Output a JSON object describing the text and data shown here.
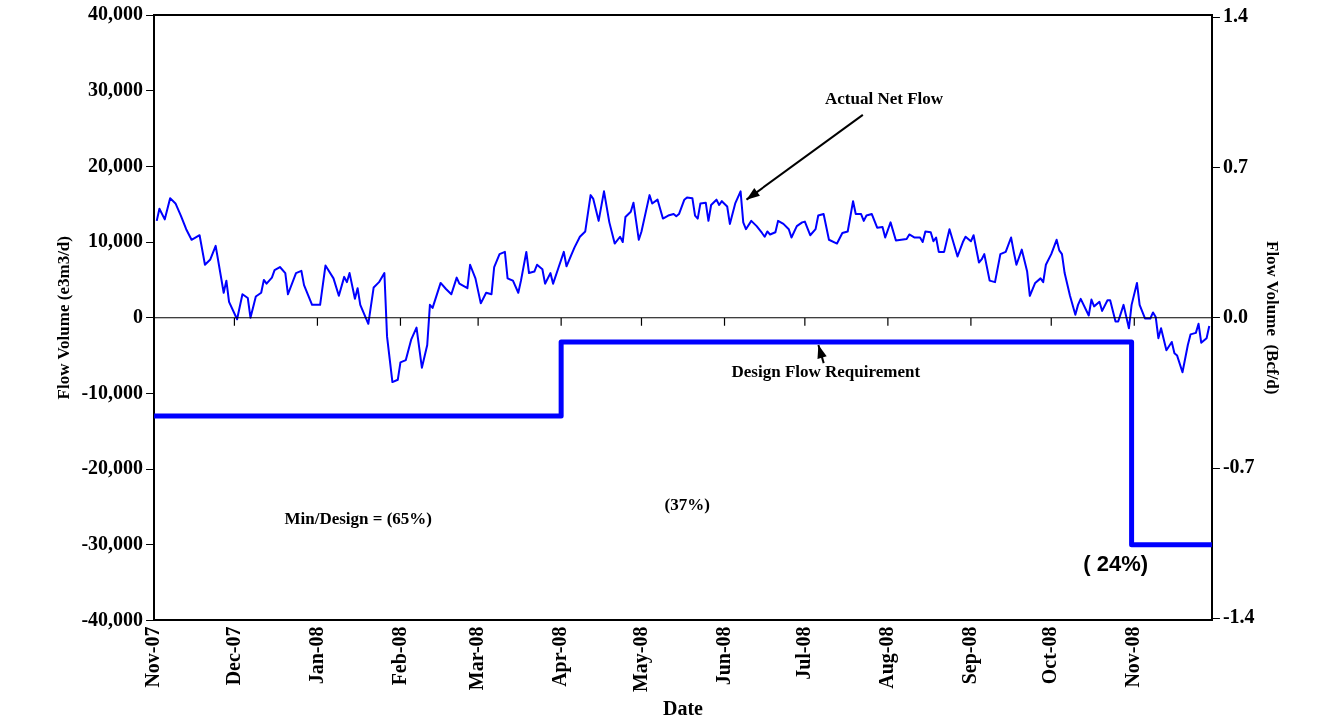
{
  "chart_data": {
    "type": "line",
    "xlabel": "Date",
    "ylabel": "Flow Volume (e3m3/d)",
    "y2label": "Flow Volume  (Bcf/d)",
    "xlim": [
      "2007-11-01",
      "2008-11-30"
    ],
    "xticks": [
      {
        "value": "2007-11-01",
        "label": "Nov-07"
      },
      {
        "value": "2007-12-01",
        "label": "Dec-07"
      },
      {
        "value": "2008-01-01",
        "label": "Jan-08"
      },
      {
        "value": "2008-02-01",
        "label": "Feb-08"
      },
      {
        "value": "2008-03-01",
        "label": "Mar-08"
      },
      {
        "value": "2008-04-01",
        "label": "Apr-08"
      },
      {
        "value": "2008-05-01",
        "label": "May-08"
      },
      {
        "value": "2008-06-01",
        "label": "Jun-08"
      },
      {
        "value": "2008-07-01",
        "label": "Jul-08"
      },
      {
        "value": "2008-08-01",
        "label": "Aug-08"
      },
      {
        "value": "2008-09-01",
        "label": "Sep-08"
      },
      {
        "value": "2008-10-01",
        "label": "Oct-08"
      },
      {
        "value": "2008-11-01",
        "label": "Nov-08"
      }
    ],
    "ylim": [
      -40000,
      40000
    ],
    "yticks": [
      {
        "value": -40000,
        "label": "-40,000"
      },
      {
        "value": -30000,
        "label": "-30,000"
      },
      {
        "value": -20000,
        "label": "-20,000"
      },
      {
        "value": -10000,
        "label": "-10,000"
      },
      0,
      {
        "value": 10000,
        "label": "10,000"
      },
      {
        "value": 20000,
        "label": "20,000"
      },
      {
        "value": 30000,
        "label": "30,000"
      },
      {
        "value": 40000,
        "label": "40,000"
      }
    ],
    "y2lim": [
      -1.41,
      1.41
    ],
    "y2ticks": [
      -1.4,
      -0.7,
      {
        "value": 0,
        "label": "0.0"
      },
      0.7,
      1.4
    ],
    "grid": false,
    "legend": false,
    "marker": "none",
    "ref_lines": [
      {
        "axis": "y",
        "value": 0,
        "color": "#000000"
      }
    ],
    "annotations": [
      "Min/Design = (65%)",
      "(37%)",
      "( 24%)"
    ],
    "series": [
      {
        "name": "Actual Net Flow",
        "color": "#0000ff",
        "x": [
          "2007-11-02",
          "2007-11-03",
          "2007-11-05",
          "2007-11-07",
          "2007-11-09",
          "2007-11-11",
          "2007-11-13",
          "2007-11-15",
          "2007-11-18",
          "2007-11-20",
          "2007-11-22",
          "2007-11-24",
          "2007-11-27",
          "2007-11-28",
          "2007-11-29",
          "2007-12-02",
          "2007-12-04",
          "2007-12-06",
          "2007-12-07",
          "2007-12-09",
          "2007-12-11",
          "2007-12-12",
          "2007-12-13",
          "2007-12-15",
          "2007-12-16",
          "2007-12-18",
          "2007-12-20",
          "2007-12-21",
          "2007-12-24",
          "2007-12-26",
          "2007-12-27",
          "2007-12-30",
          "2008-01-02",
          "2008-01-04",
          "2008-01-07",
          "2008-01-09",
          "2008-01-11",
          "2008-01-12",
          "2008-01-13",
          "2008-01-15",
          "2008-01-16",
          "2008-01-17",
          "2008-01-20",
          "2008-01-22",
          "2008-01-24",
          "2008-01-26",
          "2008-01-27",
          "2008-01-29",
          "2008-01-31",
          "2008-02-01",
          "2008-02-03",
          "2008-02-05",
          "2008-02-07",
          "2008-02-09",
          "2008-02-11",
          "2008-02-12",
          "2008-02-13",
          "2008-02-16",
          "2008-02-18",
          "2008-02-20",
          "2008-02-22",
          "2008-02-23",
          "2008-02-26",
          "2008-02-27",
          "2008-02-29",
          "2008-03-02",
          "2008-03-04",
          "2008-03-06",
          "2008-03-07",
          "2008-03-09",
          "2008-03-11",
          "2008-03-12",
          "2008-03-14",
          "2008-03-16",
          "2008-03-17",
          "2008-03-19",
          "2008-03-20",
          "2008-03-22",
          "2008-03-23",
          "2008-03-25",
          "2008-03-26",
          "2008-03-28",
          "2008-03-29",
          "2008-03-31",
          "2008-04-02",
          "2008-04-03",
          "2008-04-06",
          "2008-04-08",
          "2008-04-10",
          "2008-04-12",
          "2008-04-13",
          "2008-04-15",
          "2008-04-17",
          "2008-04-19",
          "2008-04-21",
          "2008-04-23",
          "2008-04-24",
          "2008-04-25",
          "2008-04-27",
          "2008-04-28",
          "2008-04-30",
          "2008-05-01",
          "2008-05-04",
          "2008-05-05",
          "2008-05-07",
          "2008-05-09",
          "2008-05-11",
          "2008-05-13",
          "2008-05-14",
          "2008-05-15",
          "2008-05-17",
          "2008-05-18",
          "2008-05-20",
          "2008-05-21",
          "2008-05-22",
          "2008-05-23",
          "2008-05-25",
          "2008-05-26",
          "2008-05-27",
          "2008-05-29",
          "2008-05-30",
          "2008-05-31",
          "2008-06-02",
          "2008-06-03",
          "2008-06-05",
          "2008-06-07",
          "2008-06-08",
          "2008-06-09",
          "2008-06-11",
          "2008-06-13",
          "2008-06-15",
          "2008-06-16",
          "2008-06-17",
          "2008-06-18",
          "2008-06-20",
          "2008-06-21",
          "2008-06-23",
          "2008-06-25",
          "2008-06-26",
          "2008-06-28",
          "2008-06-30",
          "2008-07-01",
          "2008-07-03",
          "2008-07-05",
          "2008-07-06",
          "2008-07-08",
          "2008-07-10",
          "2008-07-13",
          "2008-07-15",
          "2008-07-17",
          "2008-07-19",
          "2008-07-20",
          "2008-07-22",
          "2008-07-23",
          "2008-07-24",
          "2008-07-26",
          "2008-07-28",
          "2008-07-30",
          "2008-07-31",
          "2008-08-02",
          "2008-08-04",
          "2008-08-06",
          "2008-08-08",
          "2008-08-09",
          "2008-08-11",
          "2008-08-13",
          "2008-08-14",
          "2008-08-15",
          "2008-08-17",
          "2008-08-18",
          "2008-08-19",
          "2008-08-20",
          "2008-08-22",
          "2008-08-24",
          "2008-08-25",
          "2008-08-27",
          "2008-08-29",
          "2008-08-30",
          "2008-09-01",
          "2008-09-02",
          "2008-09-04",
          "2008-09-05",
          "2008-09-06",
          "2008-09-08",
          "2008-09-10",
          "2008-09-12",
          "2008-09-14",
          "2008-09-16",
          "2008-09-17",
          "2008-09-18",
          "2008-09-20",
          "2008-09-22",
          "2008-09-23",
          "2008-09-25",
          "2008-09-27",
          "2008-09-28",
          "2008-09-29",
          "2008-10-01",
          "2008-10-03",
          "2008-10-04",
          "2008-10-05",
          "2008-10-06",
          "2008-10-08",
          "2008-10-10",
          "2008-10-11",
          "2008-10-12",
          "2008-10-15",
          "2008-10-16",
          "2008-10-17",
          "2008-10-19",
          "2008-10-20",
          "2008-10-22",
          "2008-10-23",
          "2008-10-25",
          "2008-10-26",
          "2008-10-28",
          "2008-10-30",
          "2008-10-31",
          "2008-11-02",
          "2008-11-03",
          "2008-11-04",
          "2008-11-05",
          "2008-11-07",
          "2008-11-08",
          "2008-11-09",
          "2008-11-10",
          "2008-11-11",
          "2008-11-13",
          "2008-11-15",
          "2008-11-16",
          "2008-11-17",
          "2008-11-19",
          "2008-11-21",
          "2008-11-22",
          "2008-11-24",
          "2008-11-25",
          "2008-11-26",
          "2008-11-28",
          "2008-11-29"
        ],
        "values": [
          12800,
          14400,
          13000,
          15800,
          15100,
          13500,
          11700,
          10300,
          10900,
          7000,
          7700,
          9500,
          3300,
          4900,
          2100,
          -200,
          3100,
          2600,
          0,
          2800,
          3300,
          5000,
          4500,
          5300,
          6300,
          6700,
          5900,
          3100,
          5900,
          6200,
          4300,
          1700,
          1700,
          6900,
          5200,
          2900,
          5400,
          4700,
          5900,
          2500,
          3900,
          1700,
          -800,
          4000,
          4700,
          5900,
          -2500,
          -8500,
          -8200,
          -5900,
          -5600,
          -2900,
          -1300,
          -6600,
          -3600,
          1700,
          1300,
          4600,
          3800,
          3100,
          5300,
          4500,
          3900,
          7000,
          5200,
          1900,
          3300,
          3100,
          6700,
          8400,
          8700,
          5200,
          4900,
          3300,
          4900,
          8700,
          5900,
          6100,
          7000,
          6400,
          4500,
          5900,
          4500,
          6600,
          8700,
          6800,
          9300,
          10700,
          11400,
          16200,
          15700,
          12800,
          16700,
          12600,
          9800,
          10700,
          10000,
          13300,
          14000,
          15200,
          10300,
          11400,
          16200,
          15100,
          15600,
          13100,
          13500,
          13700,
          13400,
          13700,
          15600,
          15900,
          15800,
          13500,
          13100,
          15100,
          15200,
          12800,
          14900,
          15600,
          14900,
          15400,
          14700,
          12400,
          15100,
          16700,
          12600,
          11700,
          12800,
          12100,
          11200,
          10700,
          11400,
          11000,
          11300,
          12800,
          12400,
          11700,
          10600,
          12100,
          12600,
          12700,
          10900,
          11700,
          13500,
          13700,
          10300,
          9800,
          11200,
          11400,
          15400,
          13700,
          13700,
          12800,
          13500,
          13700,
          11900,
          12000,
          10600,
          12600,
          10200,
          10300,
          10400,
          11000,
          10600,
          10600,
          10000,
          11400,
          11300,
          10100,
          10600,
          8700,
          8700,
          11700,
          10500,
          8100,
          10000,
          10700,
          10100,
          10900,
          7300,
          7700,
          8400,
          4900,
          4700,
          8400,
          8700,
          10600,
          8700,
          7000,
          9000,
          6100,
          2900,
          4600,
          5200,
          4700,
          7000,
          8400,
          10300,
          8900,
          8400,
          5900,
          2900,
          400,
          1700,
          2500,
          300,
          2400,
          1500,
          2100,
          900,
          2300,
          2300,
          -500,
          -500,
          1700,
          -1400,
          1700,
          4600,
          1700,
          800,
          -100,
          -100,
          700,
          100,
          -2700,
          -1400,
          -4300,
          -3200,
          -4700,
          -5000,
          -7200,
          -3600,
          -2200,
          -2000,
          -800,
          -3300,
          -2700,
          -1100
        ]
      },
      {
        "name": "Design Flow Requirement",
        "type": "step",
        "color": "#0000ff",
        "x": [
          "2007-11-01",
          "2008-04-01",
          "2008-10-31",
          "2008-11-30"
        ],
        "values": [
          -13000,
          -3200,
          -30000,
          -30000
        ]
      }
    ]
  }
}
